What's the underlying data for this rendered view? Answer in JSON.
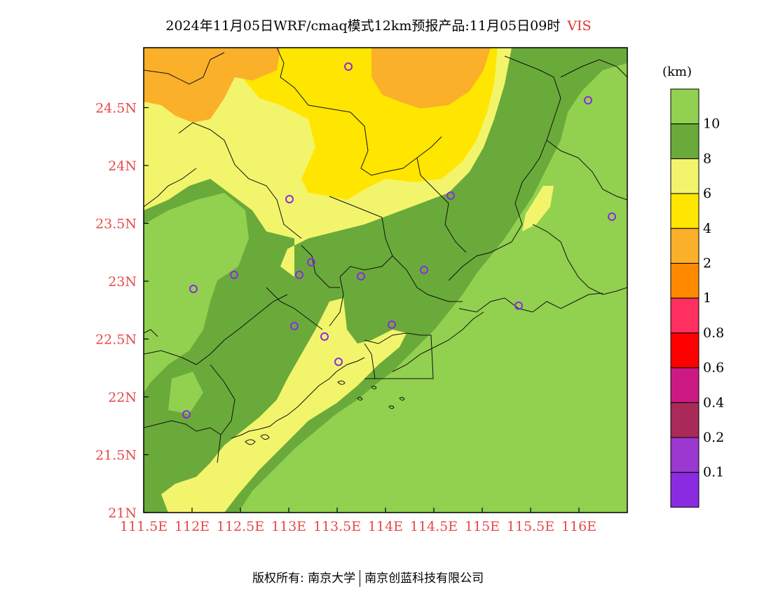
{
  "title": {
    "text": "2024年11月05日WRF/cmaq模式12km预报产品:11月05日09时",
    "variable": "VIS"
  },
  "map": {
    "lon_ticks": [
      "111.5E",
      "112E",
      "112.5E",
      "113E",
      "113.5E",
      "114E",
      "114.5E",
      "115E",
      "115.5E",
      "116E"
    ],
    "lat_ticks": [
      "21N",
      "21.5N",
      "22N",
      "22.5N",
      "23N",
      "23.5N",
      "24N",
      "24.5N"
    ],
    "tick_color": "#e84a4a"
  },
  "legend": {
    "unit": "(km)",
    "bins": [
      {
        "label": "10",
        "color": "#92d050"
      },
      {
        "label": "8",
        "color": "#6aaa3a"
      },
      {
        "label": "6",
        "color": "#f2f56c"
      },
      {
        "label": "4",
        "color": "#ffe600"
      },
      {
        "label": "2",
        "color": "#fbb02a"
      },
      {
        "label": "1",
        "color": "#ff8a00"
      },
      {
        "label": "0.8",
        "color": "#ff3060"
      },
      {
        "label": "0.6",
        "color": "#ff0000"
      },
      {
        "label": "0.4",
        "color": "#cc1a82"
      },
      {
        "label": "0.2",
        "color": "#aa2a5a"
      },
      {
        "label": "0.1",
        "color": "#9b38d0"
      },
      {
        "label": "",
        "color": "#8a2be2"
      }
    ]
  },
  "copyright": {
    "left": "版权所有: 南京大学",
    "right": "南京创蓝科技有限公司"
  }
}
